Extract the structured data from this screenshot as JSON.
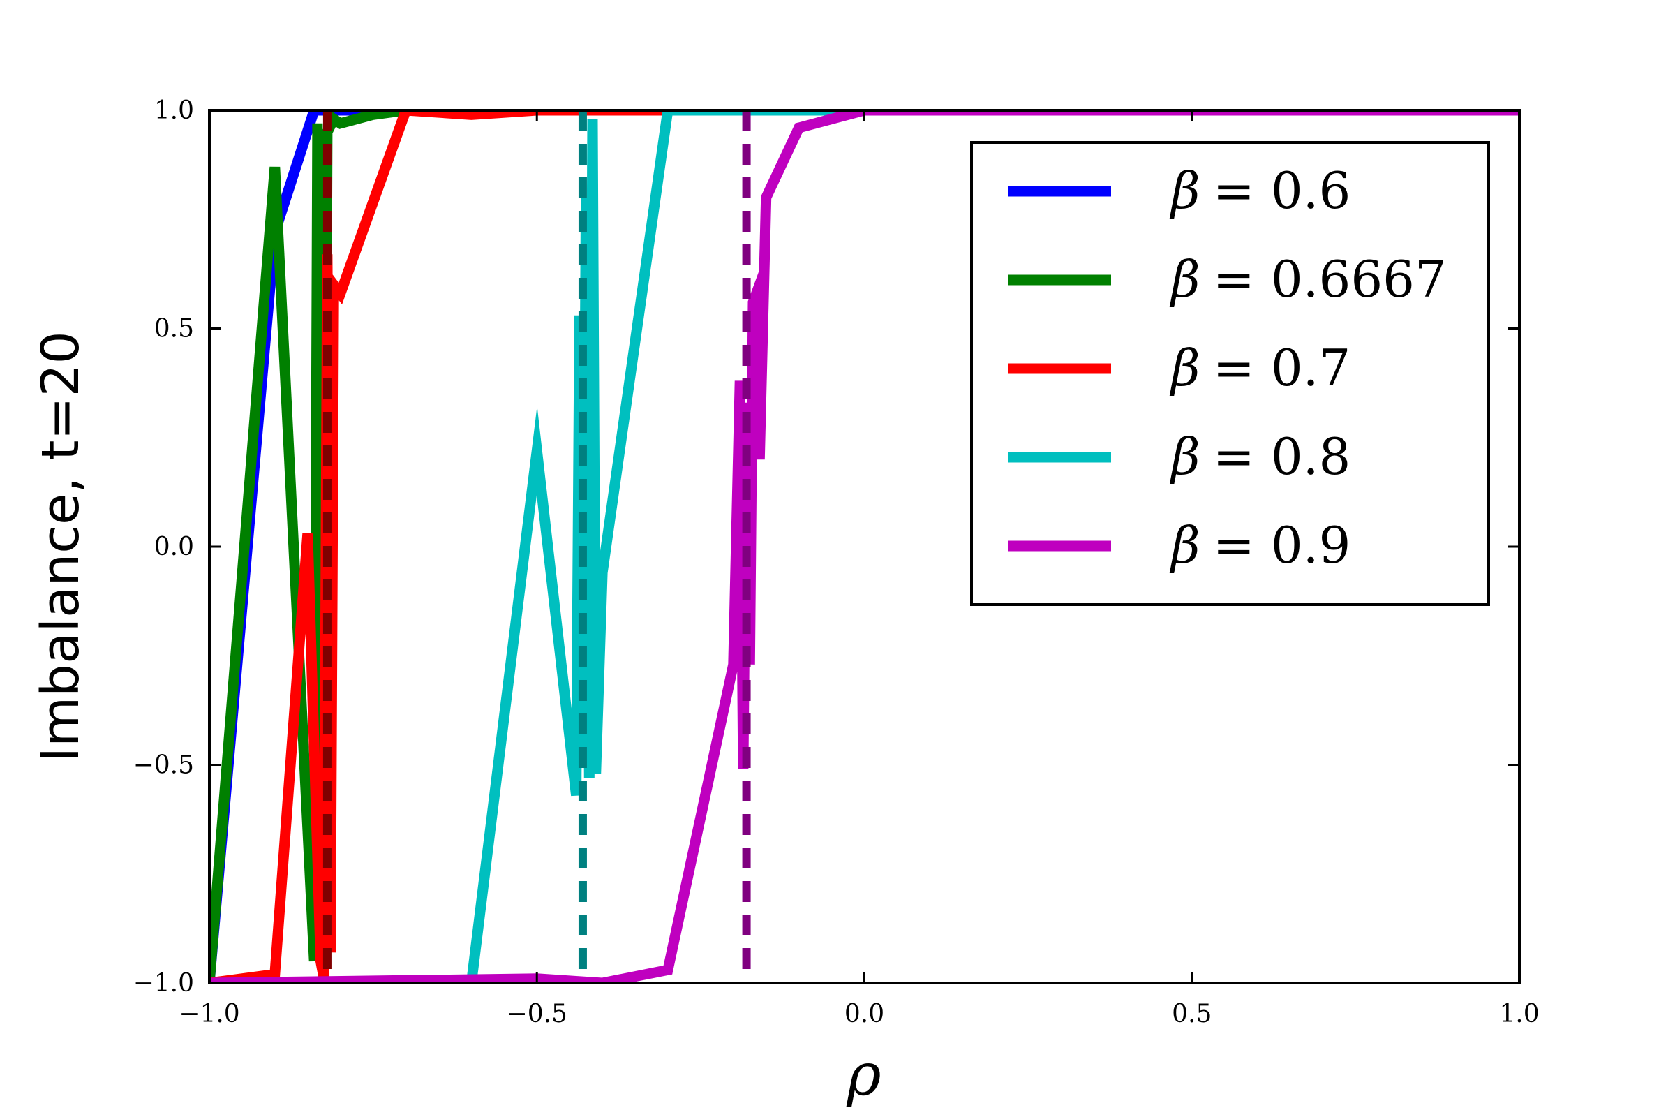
{
  "chart_data": {
    "type": "line",
    "title": "",
    "xlabel": "ρ",
    "ylabel": "Imbalance, t=20",
    "xlim": [
      -1.0,
      1.0
    ],
    "ylim": [
      -1.0,
      1.0
    ],
    "xticks": [
      -1.0,
      -0.5,
      0.0,
      0.5,
      1.0
    ],
    "yticks": [
      -1.0,
      -0.5,
      0.0,
      0.5,
      1.0
    ],
    "xtick_labels": [
      "−1.0",
      "−0.5",
      "0.0",
      "0.5",
      "1.0"
    ],
    "ytick_labels": [
      "−1.0",
      "−0.5",
      "0.0",
      "0.5",
      "1.0"
    ],
    "grid": false,
    "legend_position": "top-right",
    "series": [
      {
        "name": "β = 0.6",
        "legend_symbol": "β",
        "legend_value": "= 0.6",
        "color": "#0000ff",
        "x": [
          -1.0,
          -0.9,
          -0.84,
          -0.82,
          -0.8,
          1.0
        ],
        "y": [
          -1.0,
          0.72,
          1.0,
          1.0,
          1.0,
          1.0
        ]
      },
      {
        "name": "β = 0.6667",
        "legend_symbol": "β",
        "legend_value": "= 0.6667",
        "color": "#008000",
        "x": [
          -1.0,
          -0.9,
          -0.84,
          -0.835,
          -0.825,
          -0.82,
          -0.81,
          -0.8,
          -0.75,
          -0.7,
          1.0
        ],
        "y": [
          -1.0,
          0.87,
          -0.95,
          0.97,
          -0.85,
          0.95,
          0.98,
          0.97,
          0.99,
          1.0,
          1.0
        ]
      },
      {
        "name": "β = 0.7",
        "legend_symbol": "β",
        "legend_value": "= 0.7",
        "color": "#ff0000",
        "x": [
          -1.0,
          -0.9,
          -0.85,
          -0.83,
          -0.825,
          -0.82,
          -0.815,
          -0.81,
          -0.8,
          -0.7,
          -0.6,
          -0.5,
          1.0
        ],
        "y": [
          -1.0,
          -0.98,
          0.03,
          -0.95,
          -0.99,
          0.67,
          -0.93,
          0.6,
          0.58,
          1.0,
          0.99,
          1.0,
          1.0
        ]
      },
      {
        "name": "β = 0.8",
        "legend_symbol": "β",
        "legend_value": "= 0.8",
        "color": "#00bfbf",
        "x": [
          -1.0,
          -0.6,
          -0.5,
          -0.44,
          -0.435,
          -0.43,
          -0.425,
          -0.42,
          -0.415,
          -0.41,
          -0.4,
          -0.3,
          1.0
        ],
        "y": [
          -1.0,
          -1.0,
          0.22,
          -0.57,
          0.53,
          -0.5,
          0.8,
          -0.53,
          0.98,
          -0.52,
          -0.06,
          1.0,
          1.0
        ]
      },
      {
        "name": "β = 0.9",
        "legend_symbol": "β",
        "legend_value": "= 0.9",
        "color": "#bf00bf",
        "x": [
          -1.0,
          -0.5,
          -0.4,
          -0.3,
          -0.2,
          -0.19,
          -0.185,
          -0.18,
          -0.175,
          -0.17,
          -0.165,
          -0.16,
          -0.15,
          -0.1,
          0.0,
          1.0
        ],
        "y": [
          -1.0,
          -0.99,
          -1.0,
          -0.97,
          -0.27,
          0.38,
          -0.51,
          0.33,
          -0.27,
          0.56,
          0.58,
          0.2,
          0.8,
          0.96,
          1.0,
          1.0
        ]
      }
    ],
    "vlines": [
      {
        "x": -0.82,
        "color": "#800000",
        "style": "dashed"
      },
      {
        "x": -0.43,
        "color": "#008080",
        "style": "dashed"
      },
      {
        "x": -0.18,
        "color": "#800080",
        "style": "dashed"
      }
    ]
  }
}
